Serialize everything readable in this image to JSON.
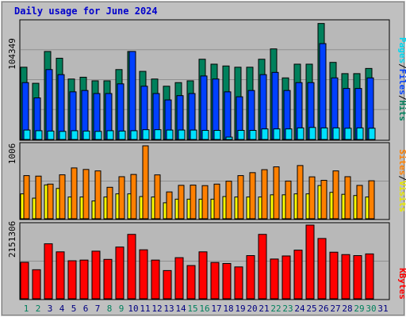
{
  "title": "Daily usage for June 2024",
  "colors": {
    "background": "#c0c0c0",
    "plot": "#b8b8b8",
    "hits": "#00805c",
    "files": "#0040ff",
    "pages": "#00e0ff",
    "visits": "#ffff00",
    "sites": "#ff8000",
    "kbytes": "#ff0000",
    "weekend_day_label": "#00805c",
    "weekday_day_label": "#000080"
  },
  "panels": {
    "hits_files_pages": {
      "max_label": "104349",
      "legend": {
        "pages": "Pages",
        "sep1": "/",
        "files": "Files",
        "sep2": "/",
        "hits": "Hits"
      }
    },
    "sites_visits": {
      "max_label": "1006",
      "legend": {
        "sites": "Sites",
        "sep": "/",
        "visits": "Visits"
      }
    },
    "kbytes": {
      "max_label": "2151306",
      "legend": {
        "kbytes": "KBytes"
      }
    }
  },
  "chart_data": {
    "type": "bar",
    "title": "Daily usage for June 2024",
    "categories": [
      "1",
      "2",
      "3",
      "4",
      "5",
      "6",
      "7",
      "8",
      "9",
      "10",
      "11",
      "12",
      "13",
      "14",
      "15",
      "16",
      "17",
      "18",
      "19",
      "20",
      "21",
      "22",
      "23",
      "24",
      "25",
      "26",
      "27",
      "28",
      "29",
      "30",
      "31"
    ],
    "weekend_days": [
      "1",
      "2",
      "8",
      "9",
      "15",
      "16",
      "22",
      "23",
      "29",
      "30"
    ],
    "panels": [
      {
        "name": "Hits / Files / Pages",
        "ylim": [
          0,
          104349
        ],
        "series": [
          {
            "name": "Hits",
            "values": [
              64300,
              50000,
              78300,
              72300,
              53800,
              55400,
              52200,
              52200,
              62200,
              78300,
              60600,
              53800,
              47400,
              50600,
              52200,
              71400,
              67000,
              65400,
              64300,
              64300,
              71400,
              80600,
              54800,
              67000,
              67000,
              103200,
              68600,
              58600,
              58600,
              63200,
              0
            ]
          },
          {
            "name": "Files",
            "values": [
              50600,
              37000,
              62200,
              57700,
              42400,
              43600,
              40900,
              40900,
              49500,
              78300,
              47400,
              40900,
              35200,
              39000,
              40900,
              56500,
              53800,
              42400,
              38000,
              43600,
              57700,
              59700,
              43600,
              50600,
              50600,
              85300,
              54800,
              45400,
              45400,
              54800,
              0
            ]
          },
          {
            "name": "Pages",
            "values": [
              8400,
              7800,
              7500,
              7200,
              7800,
              7500,
              7200,
              7800,
              7500,
              7800,
              8700,
              8700,
              8400,
              8400,
              8400,
              8100,
              8100,
              2100,
              8100,
              8100,
              9400,
              9400,
              9400,
              10300,
              10700,
              10300,
              10300,
              10000,
              10300,
              10000,
              0
            ]
          }
        ]
      },
      {
        "name": "Sites / Visits",
        "ylim": [
          0,
          1006
        ],
        "series": [
          {
            "name": "Sites",
            "values": [
              595,
              588,
              478,
              606,
              701,
              680,
              660,
              434,
              580,
              611,
              1006,
              605,
              370,
              461,
              464,
              457,
              478,
              518,
              595,
              636,
              677,
              716,
              520,
              734,
              578,
              530,
              660,
              580,
              460,
              524,
              0
            ]
          },
          {
            "name": "Visits",
            "values": [
              343,
              284,
              467,
              418,
              300,
              300,
              245,
              300,
              343,
              343,
              306,
              300,
              220,
              270,
              270,
              270,
              270,
              306,
              300,
              300,
              300,
              330,
              330,
              343,
              343,
              458,
              364,
              337,
              320,
              300,
              0
            ]
          }
        ]
      },
      {
        "name": "KBytes",
        "ylim": [
          0,
          2151306
        ],
        "series": [
          {
            "name": "KBytes",
            "values": [
              1065000,
              848000,
              1605000,
              1370000,
              1110000,
              1130000,
              1390000,
              1150000,
              1510000,
              1880000,
              1430000,
              1130000,
              824000,
              1200000,
              970000,
              1370000,
              1060000,
              1030000,
              930000,
              1260000,
              1880000,
              1160000,
              1250000,
              1420000,
              2151306,
              1760000,
              1360000,
              1290000,
              1260000,
              1310000,
              0
            ]
          }
        ]
      }
    ]
  }
}
